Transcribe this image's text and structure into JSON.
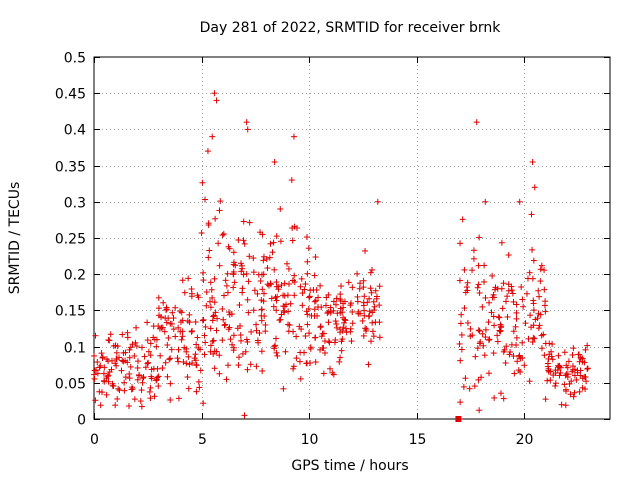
{
  "chart_data": {
    "type": "scatter",
    "title": "Day 281 of 2022, SRMTID for receiver brnk",
    "xlabel": "GPS time / hours",
    "ylabel": "SRMTID / TECUs",
    "xlim": [
      0,
      24
    ],
    "ylim": [
      0,
      0.5
    ],
    "x_ticks": [
      0,
      5,
      10,
      15,
      20
    ],
    "x_tick_labels": [
      "0",
      "5",
      "10",
      "15",
      "20"
    ],
    "y_ticks": [
      0,
      0.05,
      0.1,
      0.15,
      0.2,
      0.25,
      0.3,
      0.35,
      0.4,
      0.45,
      0.5
    ],
    "y_tick_labels": [
      "0",
      "0.05",
      "0.1",
      "0.15",
      "0.2",
      "0.25",
      "0.3",
      "0.35",
      "0.4",
      "0.45",
      "0.5"
    ],
    "grid": true,
    "marker": "+",
    "color": "#e00000",
    "series": [
      {
        "name": "SRMTID",
        "segments": [
          {
            "x_range": [
              0.0,
              1.0
            ],
            "mean": 0.065,
            "spread": 0.025,
            "density": 40
          },
          {
            "x_range": [
              1.0,
              2.0
            ],
            "mean": 0.07,
            "spread": 0.03,
            "density": 40
          },
          {
            "x_range": [
              2.0,
              3.0
            ],
            "mean": 0.075,
            "spread": 0.035,
            "density": 40
          },
          {
            "x_range": [
              3.0,
              4.0
            ],
            "mean": 0.11,
            "spread": 0.035,
            "density": 40
          },
          {
            "x_range": [
              4.0,
              5.0
            ],
            "mean": 0.12,
            "spread": 0.035,
            "density": 45
          },
          {
            "x_range": [
              5.0,
              6.0
            ],
            "mean": 0.17,
            "spread": 0.06,
            "density": 50
          },
          {
            "x_range": [
              6.0,
              7.0
            ],
            "mean": 0.16,
            "spread": 0.055,
            "density": 50
          },
          {
            "x_range": [
              7.0,
              8.0
            ],
            "mean": 0.15,
            "spread": 0.05,
            "density": 45
          },
          {
            "x_range": [
              8.0,
              9.0
            ],
            "mean": 0.17,
            "spread": 0.05,
            "density": 45
          },
          {
            "x_range": [
              9.0,
              10.0
            ],
            "mean": 0.16,
            "spread": 0.05,
            "density": 45
          },
          {
            "x_range": [
              10.0,
              11.0
            ],
            "mean": 0.13,
            "spread": 0.04,
            "density": 45
          },
          {
            "x_range": [
              11.0,
              12.0
            ],
            "mean": 0.14,
            "spread": 0.035,
            "density": 45
          },
          {
            "x_range": [
              12.0,
              13.3
            ],
            "mean": 0.15,
            "spread": 0.035,
            "density": 50
          },
          {
            "x_range": [
              17.0,
              18.0
            ],
            "mean": 0.15,
            "spread": 0.06,
            "density": 40
          },
          {
            "x_range": [
              18.0,
              19.0
            ],
            "mean": 0.14,
            "spread": 0.05,
            "density": 40
          },
          {
            "x_range": [
              19.0,
              20.0
            ],
            "mean": 0.13,
            "spread": 0.045,
            "density": 40
          },
          {
            "x_range": [
              20.0,
              21.0
            ],
            "mean": 0.15,
            "spread": 0.05,
            "density": 40
          },
          {
            "x_range": [
              21.0,
              22.0
            ],
            "mean": 0.07,
            "spread": 0.02,
            "density": 40
          },
          {
            "x_range": [
              22.0,
              23.0
            ],
            "mean": 0.065,
            "spread": 0.02,
            "density": 40
          }
        ],
        "notable_points": [
          {
            "x": 5.6,
            "y": 0.45
          },
          {
            "x": 5.7,
            "y": 0.44
          },
          {
            "x": 7.1,
            "y": 0.41
          },
          {
            "x": 7.15,
            "y": 0.4
          },
          {
            "x": 5.5,
            "y": 0.39
          },
          {
            "x": 9.3,
            "y": 0.39
          },
          {
            "x": 5.3,
            "y": 0.37
          },
          {
            "x": 8.4,
            "y": 0.355
          },
          {
            "x": 9.2,
            "y": 0.33
          },
          {
            "x": 17.8,
            "y": 0.41
          },
          {
            "x": 18.2,
            "y": 0.3
          },
          {
            "x": 20.4,
            "y": 0.355
          },
          {
            "x": 20.5,
            "y": 0.32
          },
          {
            "x": 19.8,
            "y": 0.3
          },
          {
            "x": 13.2,
            "y": 0.3
          },
          {
            "x": 7.0,
            "y": 0.005
          },
          {
            "x": 17.0,
            "y": 0.0
          }
        ]
      }
    ]
  }
}
